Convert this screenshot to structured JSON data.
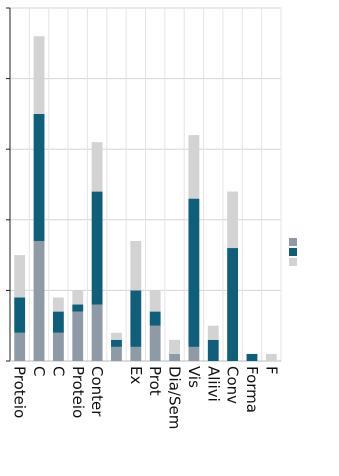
{
  "chart_data": {
    "type": "bar",
    "stacked": true,
    "orientation": "vertical",
    "label_rotation": "90deg",
    "grid": true,
    "legend_position": "right",
    "ylim": [
      0,
      50
    ],
    "categories": [
      "Proteio",
      "C",
      "C",
      "Proteio",
      "Conter",
      "",
      "Ex",
      "Prot",
      "Dia/Sem",
      "Vis",
      "Aliivi",
      "Conv",
      "Forma",
      "F"
    ],
    "series": [
      {
        "name": "",
        "color": "#8e9aa6",
        "values": [
          4,
          17,
          4,
          7,
          8,
          2,
          2,
          5,
          1,
          2,
          0,
          0,
          0,
          0
        ]
      },
      {
        "name": "",
        "color": "#0f5f7a",
        "values": [
          5,
          18,
          3,
          1,
          16,
          1,
          8,
          2,
          0,
          21,
          3,
          16,
          1,
          0
        ]
      },
      {
        "name": "",
        "color": "#d3d3d3",
        "values": [
          6,
          11,
          2,
          2,
          7,
          1,
          7,
          3,
          2,
          9,
          2,
          8,
          0,
          1
        ]
      }
    ]
  }
}
